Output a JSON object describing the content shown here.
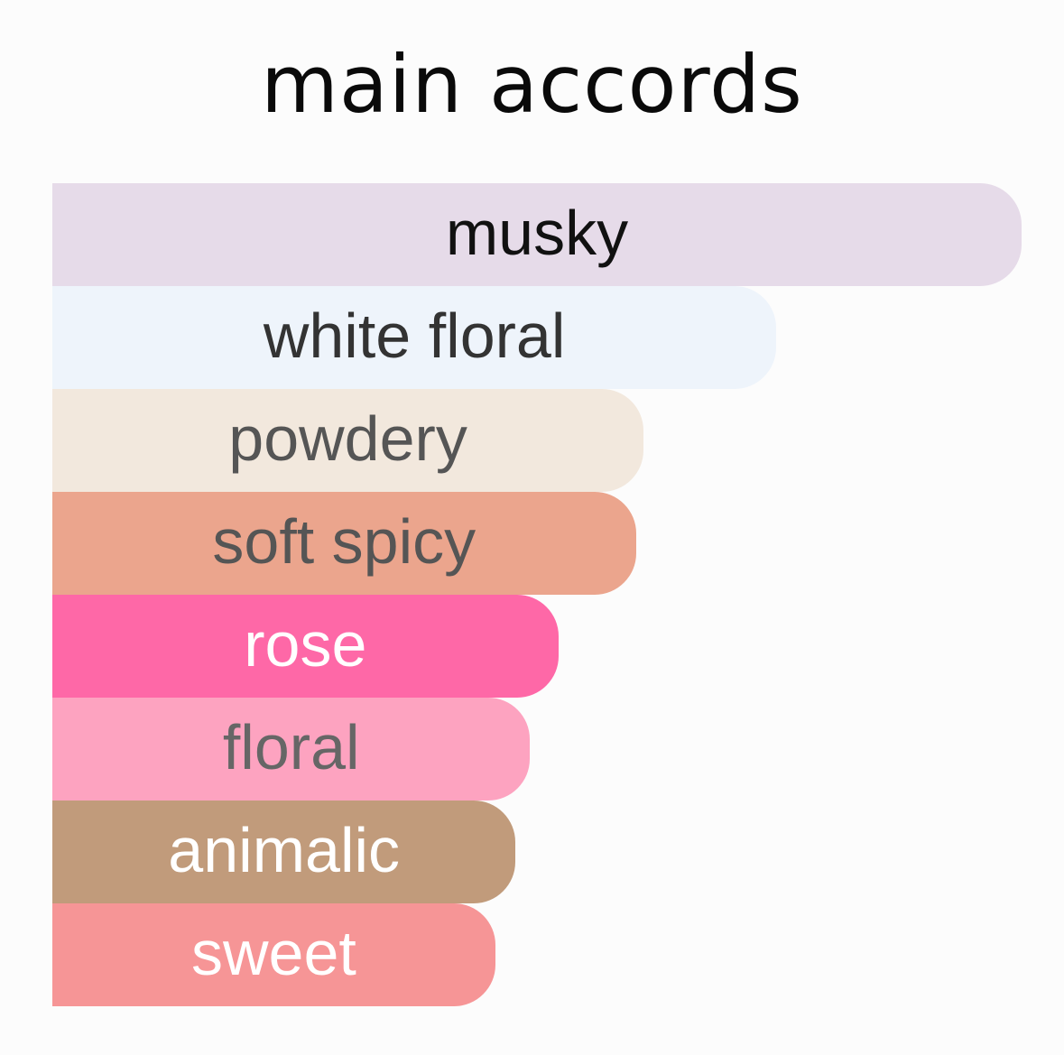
{
  "chart_data": {
    "type": "bar",
    "orientation": "horizontal",
    "title": "main accords",
    "categories": [
      "musky",
      "white floral",
      "powdery",
      "soft spicy",
      "rose",
      "floral",
      "animalic",
      "sweet"
    ],
    "values": [
      100,
      74.7,
      61,
      60.2,
      52.2,
      49.3,
      47.8,
      45.7
    ],
    "colors": [
      "#e6dbe9",
      "#eef4fb",
      "#f2e8dd",
      "#eba58d",
      "#fe68a7",
      "#fda3c0",
      "#c19b7b",
      "#f69596"
    ],
    "text_colors": [
      "#111111",
      "#333333",
      "#555555",
      "#555555",
      "#ffffff",
      "#666666",
      "#ffffff",
      "#ffffff"
    ],
    "grid": false,
    "legend": "none"
  }
}
